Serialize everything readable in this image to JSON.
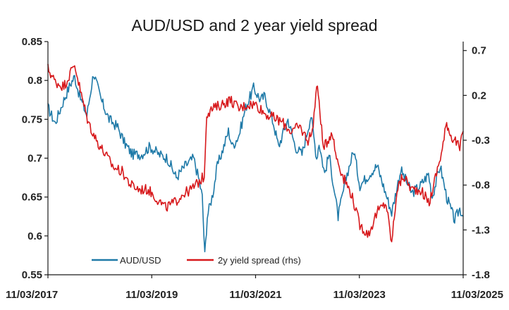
{
  "chart_data": {
    "type": "line",
    "title": "AUD/USD and 2 year yield spread",
    "xlabel": "",
    "ylabel": "",
    "x_ticks": [
      "11/03/2017",
      "11/03/2019",
      "11/03/2021",
      "11/03/2023",
      "11/03/2025"
    ],
    "x_range": [
      "2017-03-11",
      "2025-03-11"
    ],
    "y_left": {
      "ticks": [
        "0.55",
        "0.6",
        "0.65",
        "0.7",
        "0.75",
        "0.8",
        "0.85"
      ],
      "lim": [
        0.55,
        0.85
      ]
    },
    "y_right": {
      "ticks": [
        "-1.8",
        "-1.3",
        "-0.8",
        "-0.3",
        "0.2",
        "0.7"
      ],
      "lim": [
        -1.8,
        0.8
      ]
    },
    "legend_position": "bottom-left",
    "series": [
      {
        "name": "AUD/USD",
        "axis": "left",
        "color": "#1f7aa8",
        "points": [
          [
            "2017-03-11",
            0.765
          ],
          [
            "2017-05-01",
            0.745
          ],
          [
            "2017-07-01",
            0.775
          ],
          [
            "2017-08-15",
            0.795
          ],
          [
            "2017-09-15",
            0.805
          ],
          [
            "2017-10-20",
            0.78
          ],
          [
            "2017-12-10",
            0.755
          ],
          [
            "2018-01-26",
            0.81
          ],
          [
            "2018-03-20",
            0.775
          ],
          [
            "2018-05-15",
            0.75
          ],
          [
            "2018-07-15",
            0.74
          ],
          [
            "2018-08-31",
            0.72
          ],
          [
            "2018-10-25",
            0.705
          ],
          [
            "2018-12-31",
            0.705
          ],
          [
            "2019-02-28",
            0.715
          ],
          [
            "2019-04-30",
            0.705
          ],
          [
            "2019-06-30",
            0.7
          ],
          [
            "2019-08-31",
            0.675
          ],
          [
            "2019-10-31",
            0.69
          ],
          [
            "2019-12-31",
            0.7
          ],
          [
            "2020-02-10",
            0.67
          ],
          [
            "2020-03-01",
            0.65
          ],
          [
            "2020-03-19",
            0.575
          ],
          [
            "2020-04-05",
            0.625
          ],
          [
            "2020-05-15",
            0.655
          ],
          [
            "2020-06-15",
            0.69
          ],
          [
            "2020-07-31",
            0.715
          ],
          [
            "2020-09-01",
            0.735
          ],
          [
            "2020-09-30",
            0.715
          ],
          [
            "2020-11-15",
            0.73
          ],
          [
            "2020-12-31",
            0.765
          ],
          [
            "2021-02-25",
            0.79
          ],
          [
            "2021-04-15",
            0.775
          ],
          [
            "2021-05-15",
            0.78
          ],
          [
            "2021-07-15",
            0.745
          ],
          [
            "2021-08-20",
            0.715
          ],
          [
            "2021-10-25",
            0.75
          ],
          [
            "2021-12-15",
            0.715
          ],
          [
            "2022-02-01",
            0.705
          ],
          [
            "2022-04-05",
            0.755
          ],
          [
            "2022-05-15",
            0.7
          ],
          [
            "2022-06-01",
            0.72
          ],
          [
            "2022-07-10",
            0.68
          ],
          [
            "2022-08-10",
            0.705
          ],
          [
            "2022-10-13",
            0.625
          ],
          [
            "2022-12-15",
            0.68
          ],
          [
            "2023-02-01",
            0.71
          ],
          [
            "2023-03-15",
            0.665
          ],
          [
            "2023-06-15",
            0.685
          ],
          [
            "2023-07-15",
            0.69
          ],
          [
            "2023-10-25",
            0.63
          ],
          [
            "2023-12-28",
            0.685
          ],
          [
            "2024-03-15",
            0.655
          ],
          [
            "2024-05-15",
            0.665
          ],
          [
            "2024-07-10",
            0.68
          ],
          [
            "2024-08-05",
            0.65
          ],
          [
            "2024-09-30",
            0.69
          ],
          [
            "2024-11-15",
            0.65
          ],
          [
            "2025-01-10",
            0.62
          ],
          [
            "2025-02-15",
            0.635
          ],
          [
            "2025-03-11",
            0.625
          ]
        ]
      },
      {
        "name": "2y yield spread (rhs)",
        "axis": "right",
        "color": "#d7191c",
        "points": [
          [
            "2017-03-11",
            0.5
          ],
          [
            "2017-05-01",
            0.35
          ],
          [
            "2017-07-01",
            0.3
          ],
          [
            "2017-08-01",
            0.4
          ],
          [
            "2017-09-15",
            0.55
          ],
          [
            "2017-11-01",
            0.2
          ],
          [
            "2017-12-20",
            -0.1
          ],
          [
            "2018-02-15",
            -0.3
          ],
          [
            "2018-04-15",
            -0.45
          ],
          [
            "2018-06-15",
            -0.6
          ],
          [
            "2018-08-15",
            -0.65
          ],
          [
            "2018-10-15",
            -0.8
          ],
          [
            "2018-12-15",
            -0.85
          ],
          [
            "2019-02-15",
            -0.85
          ],
          [
            "2019-04-15",
            -0.95
          ],
          [
            "2019-06-15",
            -1.05
          ],
          [
            "2019-08-15",
            -1.0
          ],
          [
            "2019-10-15",
            -0.9
          ],
          [
            "2019-12-15",
            -0.85
          ],
          [
            "2020-02-15",
            -0.75
          ],
          [
            "2020-03-15",
            -0.7
          ],
          [
            "2020-04-01",
            0.0
          ],
          [
            "2020-05-15",
            0.05
          ],
          [
            "2020-07-15",
            0.1
          ],
          [
            "2020-09-15",
            0.15
          ],
          [
            "2020-11-15",
            0.05
          ],
          [
            "2021-01-15",
            0.1
          ],
          [
            "2021-03-15",
            0.1
          ],
          [
            "2021-05-15",
            0.0
          ],
          [
            "2021-07-15",
            -0.05
          ],
          [
            "2021-09-15",
            -0.1
          ],
          [
            "2021-11-15",
            -0.2
          ],
          [
            "2022-01-15",
            -0.15
          ],
          [
            "2022-03-15",
            -0.3
          ],
          [
            "2022-04-15",
            -0.2
          ],
          [
            "2022-05-15",
            0.3
          ],
          [
            "2022-06-01",
            0.15
          ],
          [
            "2022-07-01",
            -0.4
          ],
          [
            "2022-09-01",
            -0.2
          ],
          [
            "2022-09-25",
            -0.45
          ],
          [
            "2022-11-15",
            -0.7
          ],
          [
            "2023-01-15",
            -0.9
          ],
          [
            "2023-03-15",
            -1.25
          ],
          [
            "2023-05-15",
            -1.35
          ],
          [
            "2023-07-15",
            -1.1
          ],
          [
            "2023-09-15",
            -1.0
          ],
          [
            "2023-10-25",
            -1.45
          ],
          [
            "2023-12-01",
            -0.85
          ],
          [
            "2024-01-15",
            -0.7
          ],
          [
            "2024-03-15",
            -0.85
          ],
          [
            "2024-05-15",
            -0.85
          ],
          [
            "2024-07-15",
            -1.0
          ],
          [
            "2024-08-15",
            -0.8
          ],
          [
            "2024-10-15",
            -0.4
          ],
          [
            "2024-11-15",
            -0.1
          ],
          [
            "2024-12-15",
            -0.25
          ],
          [
            "2025-01-15",
            -0.3
          ],
          [
            "2025-02-15",
            -0.4
          ],
          [
            "2025-03-11",
            -0.2
          ]
        ]
      }
    ]
  }
}
